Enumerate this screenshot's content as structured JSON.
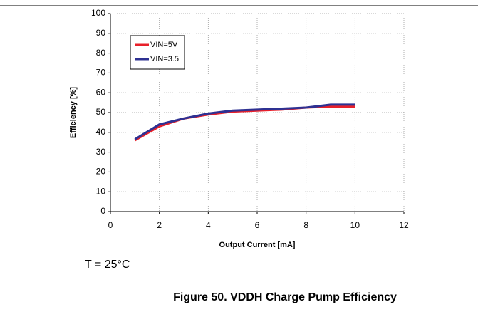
{
  "chart_data": {
    "type": "line",
    "x": [
      1,
      2,
      3,
      4,
      5,
      6,
      7,
      8,
      9,
      10
    ],
    "series": [
      {
        "name": "VIN=5V",
        "color": "#e8202a",
        "values": [
          36,
          43,
          47,
          49,
          50.5,
          51,
          51.5,
          52.5,
          53,
          53
        ]
      },
      {
        "name": "VIN=3.5",
        "color": "#2e3192",
        "values": [
          36.5,
          44,
          47,
          49.5,
          51,
          51.5,
          52,
          52.5,
          54,
          54
        ]
      }
    ],
    "xlabel": "Output Current [mA]",
    "ylabel": "Efficiency [%]",
    "xlim": [
      0,
      12
    ],
    "xticks": [
      0,
      2,
      4,
      6,
      8,
      10,
      12
    ],
    "ylim": [
      0,
      100
    ],
    "yticks": [
      0,
      10,
      20,
      30,
      40,
      50,
      60,
      70,
      80,
      90,
      100
    ],
    "grid": true,
    "legend": "upper-left",
    "annotation": "T = 25°C",
    "caption": "Figure 50. VDDH Charge Pump Efficiency"
  }
}
